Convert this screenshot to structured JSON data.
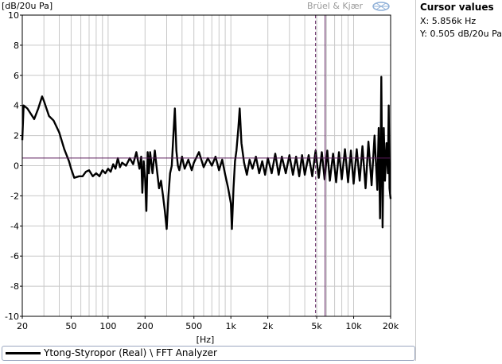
{
  "y_unit_label": "[dB/20u Pa]",
  "x_unit_label": "[Hz]",
  "brand": "Brüel & Kjær",
  "cursor": {
    "title": "Cursor values",
    "x_text": "X: 5.856k Hz",
    "y_text": "Y: 0.505 dB/20u Pa"
  },
  "legend": {
    "label": "Ytong-Styropor (Real) \\ FFT Analyzer"
  },
  "colors": {
    "trace": "#000000",
    "cursor": "#5a1a5a",
    "grid": "#c8c8c8",
    "frame": "#000000"
  },
  "chart_data": {
    "type": "line",
    "x_scale": "log",
    "xlim": [
      20,
      20000
    ],
    "ylim": [
      -10,
      10
    ],
    "xlabel": "[Hz]",
    "ylabel": "[dB/20u Pa]",
    "x_tick_labels": [
      {
        "v": 20,
        "t": "20"
      },
      {
        "v": 50,
        "t": "50"
      },
      {
        "v": 100,
        "t": "100"
      },
      {
        "v": 200,
        "t": "200"
      },
      {
        "v": 500,
        "t": "500"
      },
      {
        "v": 1000,
        "t": "1k"
      },
      {
        "v": 2000,
        "t": "2k"
      },
      {
        "v": 5000,
        "t": "5k"
      },
      {
        "v": 10000,
        "t": "10k"
      },
      {
        "v": 20000,
        "t": "20k"
      }
    ],
    "y_ticks": [
      -10,
      -8,
      -6,
      -4,
      -2,
      0,
      2,
      4,
      6,
      8,
      10
    ],
    "grid": true,
    "cursor": {
      "x": 5856,
      "y": 0.505
    },
    "series": [
      {
        "name": "Ytong-Styropor (Real) \\ FFT Analyzer",
        "points": [
          [
            20,
            1.7
          ],
          [
            20.5,
            4.0
          ],
          [
            22,
            3.8
          ],
          [
            25,
            3.1
          ],
          [
            27,
            3.8
          ],
          [
            29,
            4.6
          ],
          [
            30,
            4.3
          ],
          [
            33,
            3.3
          ],
          [
            36,
            3.0
          ],
          [
            40,
            2.2
          ],
          [
            44,
            1.1
          ],
          [
            48,
            0.3
          ],
          [
            50,
            -0.2
          ],
          [
            53,
            -0.8
          ],
          [
            58,
            -0.7
          ],
          [
            62,
            -0.7
          ],
          [
            66,
            -0.4
          ],
          [
            70,
            -0.3
          ],
          [
            75,
            -0.7
          ],
          [
            80,
            -0.5
          ],
          [
            85,
            -0.7
          ],
          [
            90,
            -0.3
          ],
          [
            95,
            -0.5
          ],
          [
            100,
            -0.2
          ],
          [
            105,
            -0.4
          ],
          [
            110,
            0.1
          ],
          [
            115,
            -0.2
          ],
          [
            120,
            0.5
          ],
          [
            125,
            -0.1
          ],
          [
            130,
            0.2
          ],
          [
            140,
            0.0
          ],
          [
            150,
            0.5
          ],
          [
            160,
            0.1
          ],
          [
            170,
            0.9
          ],
          [
            180,
            -0.2
          ],
          [
            186,
            0.6
          ],
          [
            190,
            -1.8
          ],
          [
            195,
            0.3
          ],
          [
            200,
            -0.8
          ],
          [
            205,
            -3.0
          ],
          [
            210,
            0.9
          ],
          [
            215,
            -0.5
          ],
          [
            220,
            0.9
          ],
          [
            230,
            -0.5
          ],
          [
            240,
            1.0
          ],
          [
            250,
            -0.3
          ],
          [
            260,
            -1.5
          ],
          [
            270,
            -1.0
          ],
          [
            280,
            -2.0
          ],
          [
            290,
            -3.0
          ],
          [
            300,
            -4.2
          ],
          [
            310,
            -2.0
          ],
          [
            320,
            -0.5
          ],
          [
            330,
            0.0
          ],
          [
            340,
            2.0
          ],
          [
            350,
            3.8
          ],
          [
            360,
            1.0
          ],
          [
            370,
            0.0
          ],
          [
            380,
            -0.3
          ],
          [
            400,
            0.6
          ],
          [
            420,
            -0.2
          ],
          [
            450,
            0.4
          ],
          [
            480,
            -0.3
          ],
          [
            500,
            0.2
          ],
          [
            550,
            0.9
          ],
          [
            600,
            -0.1
          ],
          [
            650,
            0.5
          ],
          [
            700,
            0.0
          ],
          [
            750,
            0.6
          ],
          [
            800,
            -0.3
          ],
          [
            850,
            0.4
          ],
          [
            900,
            -0.6
          ],
          [
            950,
            -1.5
          ],
          [
            1000,
            -2.5
          ],
          [
            1020,
            -4.2
          ],
          [
            1050,
            -1.5
          ],
          [
            1080,
            0.3
          ],
          [
            1110,
            1.0
          ],
          [
            1150,
            2.5
          ],
          [
            1180,
            3.8
          ],
          [
            1220,
            1.5
          ],
          [
            1280,
            0.2
          ],
          [
            1350,
            -0.6
          ],
          [
            1420,
            0.4
          ],
          [
            1500,
            -0.2
          ],
          [
            1600,
            0.6
          ],
          [
            1700,
            -0.5
          ],
          [
            1800,
            0.3
          ],
          [
            1900,
            -0.6
          ],
          [
            2000,
            0.5
          ],
          [
            2150,
            -0.5
          ],
          [
            2300,
            0.8
          ],
          [
            2450,
            -0.6
          ],
          [
            2600,
            0.6
          ],
          [
            2800,
            -0.5
          ],
          [
            3000,
            0.7
          ],
          [
            3200,
            -0.6
          ],
          [
            3400,
            0.6
          ],
          [
            3600,
            -0.7
          ],
          [
            3800,
            0.7
          ],
          [
            4000,
            -0.6
          ],
          [
            4300,
            0.7
          ],
          [
            4600,
            -0.7
          ],
          [
            4900,
            1.0
          ],
          [
            5200,
            -0.8
          ],
          [
            5500,
            0.9
          ],
          [
            5800,
            -0.9
          ],
          [
            6100,
            1.0
          ],
          [
            6400,
            -1.0
          ],
          [
            6800,
            0.8
          ],
          [
            7200,
            -1.1
          ],
          [
            7600,
            0.9
          ],
          [
            8000,
            -0.9
          ],
          [
            8500,
            1.1
          ],
          [
            9000,
            -1.1
          ],
          [
            9500,
            1.0
          ],
          [
            10000,
            -1.2
          ],
          [
            10600,
            1.1
          ],
          [
            11200,
            -1.0
          ],
          [
            11800,
            1.3
          ],
          [
            12500,
            -1.5
          ],
          [
            13200,
            1.6
          ],
          [
            14000,
            -1.3
          ],
          [
            14800,
            2.0
          ],
          [
            15600,
            -1.6
          ],
          [
            16000,
            2.5
          ],
          [
            16400,
            -3.5
          ],
          [
            16800,
            5.9
          ],
          [
            17200,
            -4.1
          ],
          [
            17600,
            2.5
          ],
          [
            18000,
            -1.0
          ],
          [
            18500,
            1.5
          ],
          [
            19000,
            -0.5
          ],
          [
            19300,
            4.0
          ],
          [
            19600,
            -1.5
          ],
          [
            20000,
            -2.2
          ]
        ]
      }
    ]
  }
}
